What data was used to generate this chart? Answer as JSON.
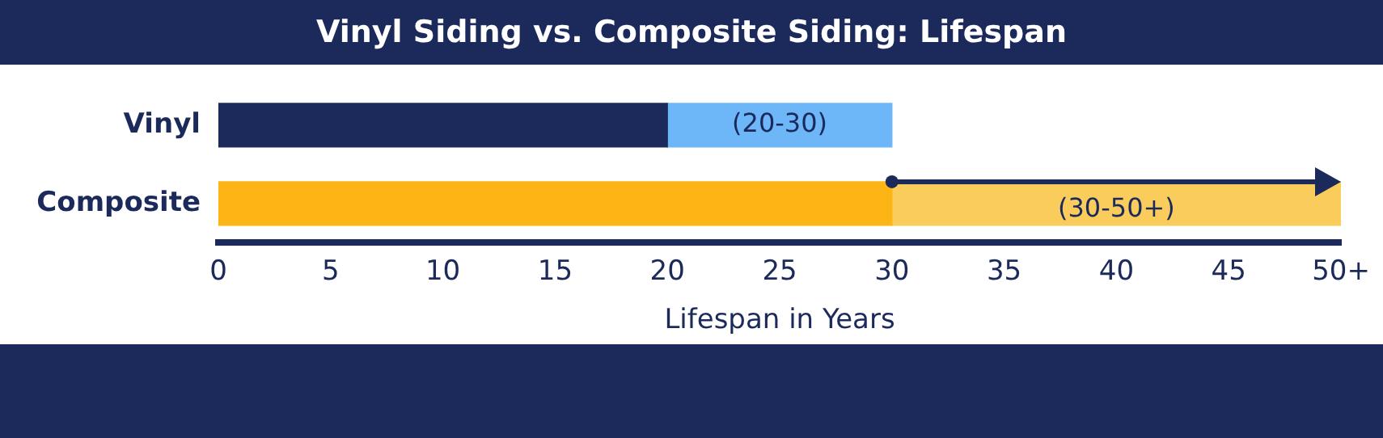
{
  "chart_data": {
    "type": "bar",
    "orientation": "horizontal",
    "stacked": true,
    "title": "Vinyl Siding vs. Composite Siding: Lifespan",
    "xlabel": "Lifespan in Years",
    "categories": [
      "Vinyl",
      "Composite"
    ],
    "series": [
      {
        "colors": [
          "#1b2a5a",
          "#fdb515"
        ],
        "values": [
          20,
          30
        ]
      },
      {
        "colors": [
          "#6db6f7",
          "#facc5c"
        ],
        "values": [
          10,
          20
        ],
        "value_labels": [
          "(20-30)",
          "(30-50+)"
        ]
      }
    ],
    "xlim": [
      0,
      50
    ],
    "xticks": [
      0,
      5,
      10,
      15,
      20,
      25,
      30,
      35,
      40,
      45,
      {
        "value": 50,
        "label": "50+"
      }
    ],
    "grid": false,
    "legend": false
  }
}
